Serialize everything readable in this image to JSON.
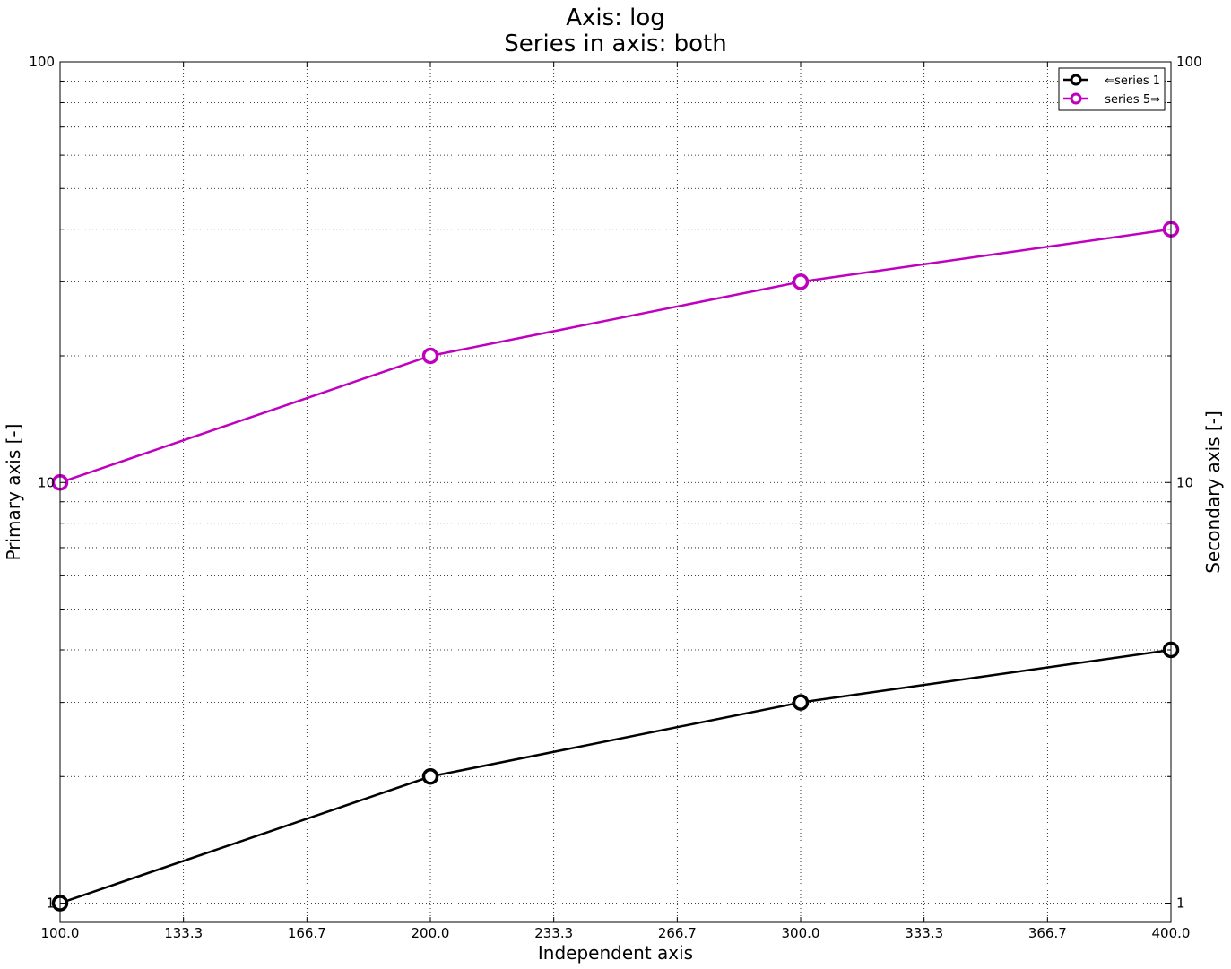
{
  "chart_data": {
    "type": "line",
    "title": [
      "Axis: log",
      "Series in axis: both"
    ],
    "xlabel": "Independent axis",
    "ylabel": "Primary axis [-]",
    "y2label": "Secondary axis [-]",
    "xlim": [
      100,
      400
    ],
    "ylim": [
      0.9,
      100
    ],
    "y2lim": [
      0.9,
      100
    ],
    "yscale": "log",
    "y2scale": "log",
    "x_ticks": [
      "100.0",
      "133.3",
      "166.7",
      "200.0",
      "233.3",
      "266.7",
      "300.0",
      "333.3",
      "366.7",
      "400.0"
    ],
    "x_tick_values": [
      100,
      133.333,
      166.667,
      200,
      233.333,
      266.667,
      300,
      333.333,
      366.667,
      400
    ],
    "y_ticks": [
      "1",
      "10",
      "100"
    ],
    "y_tick_values": [
      1,
      10,
      100
    ],
    "y2_ticks": [
      "1",
      "10",
      "100"
    ],
    "y2_tick_values": [
      1,
      10,
      100
    ],
    "grid": true,
    "legend_position": "top-right",
    "series": [
      {
        "name": "⇐series 1",
        "axis": "primary",
        "color": "#000000",
        "x": [
          100,
          200,
          300,
          400
        ],
        "y": [
          1,
          2,
          3,
          4
        ]
      },
      {
        "name": "series 5⇒",
        "axis": "secondary",
        "color": "#bf00bf",
        "x": [
          100,
          200,
          300,
          400
        ],
        "y": [
          10,
          20,
          30,
          40
        ]
      }
    ]
  }
}
